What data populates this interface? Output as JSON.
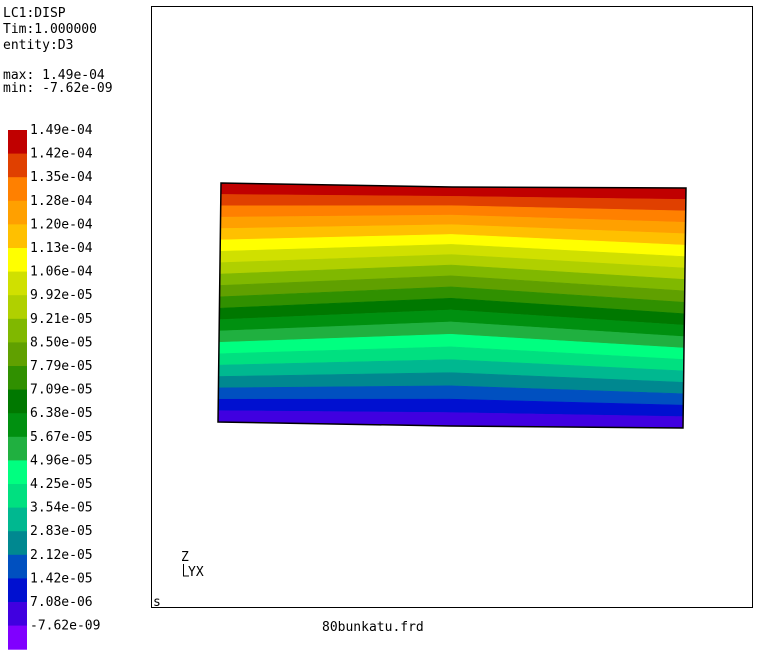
{
  "header": {
    "lines": [
      "LC1:DISP",
      "Tim:1.000000",
      "entity:D3"
    ],
    "max": "max: 1.49e-04",
    "min": "min: -7.62e-09"
  },
  "legend": {
    "items": [
      {
        "label": "1.49e-04",
        "color": "#c00000"
      },
      {
        "label": "1.42e-04",
        "color": "#e04000"
      },
      {
        "label": "1.35e-04",
        "color": "#ff8000"
      },
      {
        "label": "1.28e-04",
        "color": "#ffa000"
      },
      {
        "label": "1.20e-04",
        "color": "#ffc000"
      },
      {
        "label": "1.13e-04",
        "color": "#ffff00"
      },
      {
        "label": "1.06e-04",
        "color": "#d0e000"
      },
      {
        "label": "9.92e-05",
        "color": "#b0d000"
      },
      {
        "label": "9.21e-05",
        "color": "#80b800"
      },
      {
        "label": "8.50e-05",
        "color": "#60a000"
      },
      {
        "label": "7.79e-05",
        "color": "#309000"
      },
      {
        "label": "7.09e-05",
        "color": "#007800"
      },
      {
        "label": "6.38e-05",
        "color": "#009010"
      },
      {
        "label": "5.67e-05",
        "color": "#20b040"
      },
      {
        "label": "4.96e-05",
        "color": "#00ff80"
      },
      {
        "label": "4.25e-05",
        "color": "#00e080"
      },
      {
        "label": "3.54e-05",
        "color": "#00b890"
      },
      {
        "label": "2.83e-05",
        "color": "#008890"
      },
      {
        "label": "2.12e-05",
        "color": "#0050c0"
      },
      {
        "label": "1.42e-05",
        "color": "#0010d0"
      },
      {
        "label": "7.08e-06",
        "color": "#4000e0"
      },
      {
        "label": "-7.62e-09",
        "color": "#8000ff"
      }
    ]
  },
  "triad": {
    "z": "Z",
    "yx": "YX"
  },
  "corner": "s",
  "file": "80bunkatu.frd"
}
